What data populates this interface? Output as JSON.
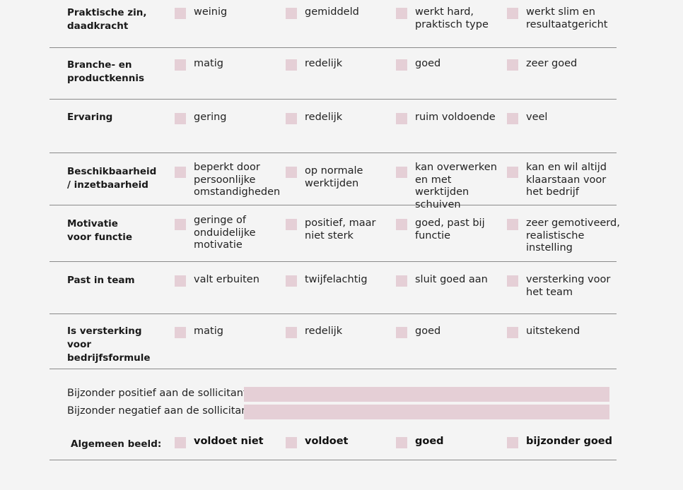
{
  "criteria": [
    {
      "label": "Praktische zin, daadkracht",
      "options": [
        "weinig",
        "gemiddeld",
        "werkt hard, praktisch type",
        "werkt slim en resultaatgericht"
      ]
    },
    {
      "label": "Branche- en productkennis",
      "options": [
        "matig",
        "redelijk",
        "goed",
        "zeer goed"
      ]
    },
    {
      "label": "Ervaring",
      "options": [
        "gering",
        "redelijk",
        "ruim voldoende",
        "veel"
      ]
    },
    {
      "label": "Beschikbaarheid / inzetbaarheid",
      "options": [
        "beperkt door persoonlijke omstandigheden",
        "op normale werktijden",
        "kan overwerken en met werktijden schuiven",
        "kan en wil altijd klaarstaan voor het bedrijf"
      ]
    },
    {
      "label": "Motivatie voor functie",
      "options": [
        "geringe of onduidelijke motivatie",
        "positief, maar niet sterk",
        "goed, past bij functie",
        "zeer gemotiveerd, realistische instelling"
      ]
    },
    {
      "label": "Past in team",
      "options": [
        "valt erbuiten",
        "twijfelachtig",
        "sluit goed aan",
        "versterking voor het team"
      ]
    },
    {
      "label": "Is versterking voor bedrijfsformule",
      "options": [
        "matig",
        "redelijk",
        "goed",
        "uitstekend"
      ]
    }
  ],
  "remarks": {
    "positive_label": "Bijzonder positief aan de sollicitant:",
    "positive_value": "",
    "negative_label": "Bijzonder negatief aan de sollicitant:",
    "negative_value": ""
  },
  "overall": {
    "label": "Algemeen beeld:",
    "options": [
      "voldoet niet",
      "voldoet",
      "goed",
      "bijzonder goed"
    ]
  },
  "colors": {
    "checkbox_fill": "#e5cfd6",
    "divider": "#8a8a8a",
    "background": "#f4f4f4"
  }
}
